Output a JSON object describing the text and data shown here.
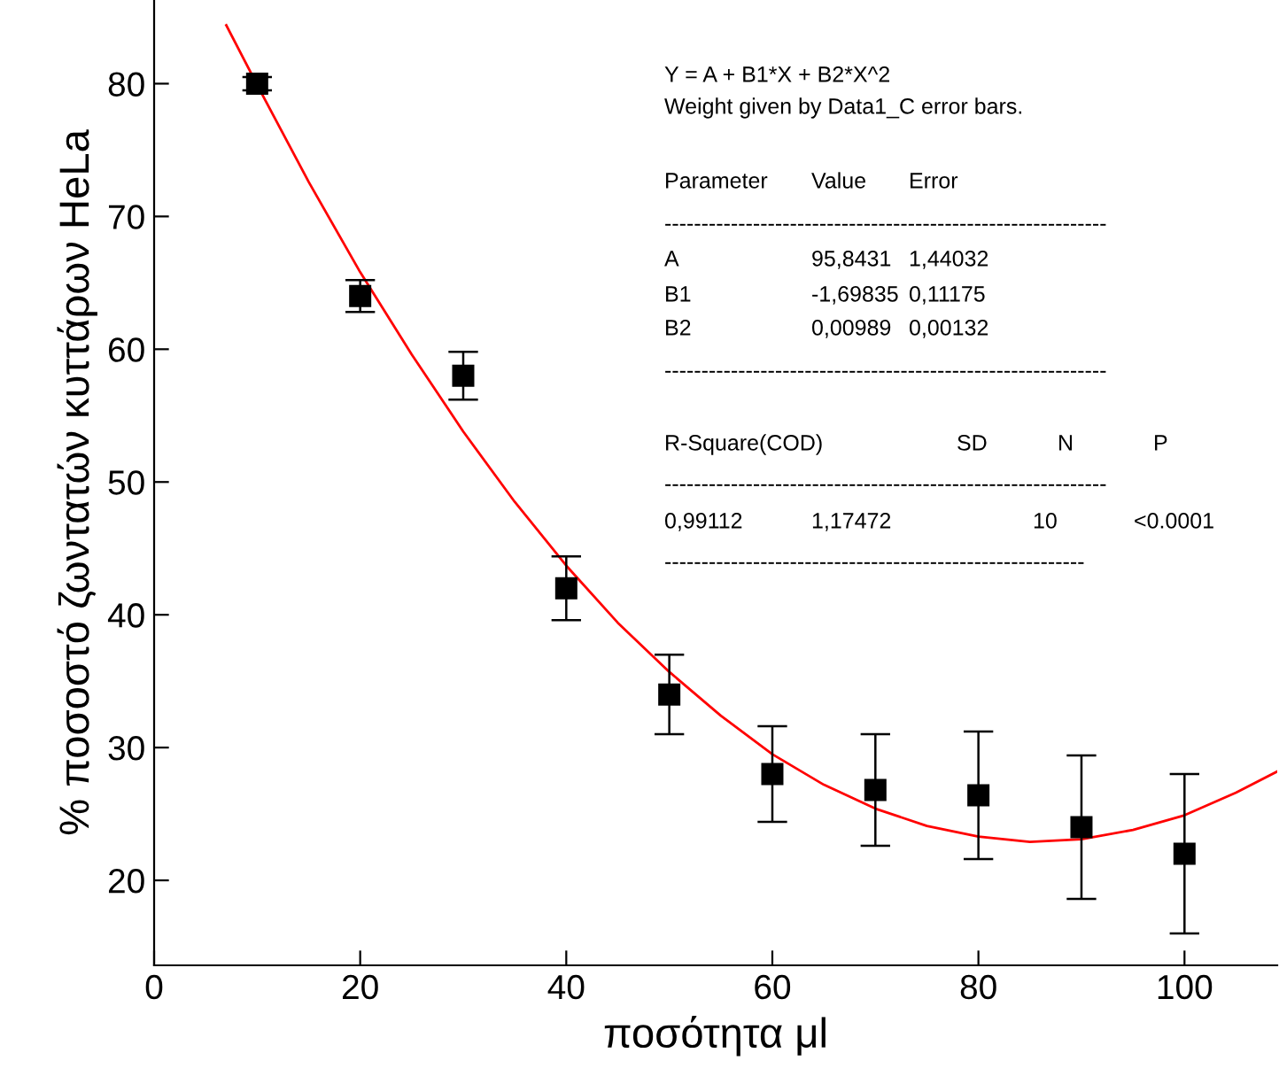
{
  "chart_data": {
    "type": "scatter",
    "xlabel": "ποσότητα μl",
    "ylabel": "% ποσοστό ζωντατών κυττάρων HeLa",
    "xlim": [
      0,
      109
    ],
    "ylim": [
      13.6,
      86.3
    ],
    "xticks": [
      0,
      20,
      40,
      60,
      80,
      100
    ],
    "yticks": [
      20,
      30,
      40,
      50,
      60,
      70,
      80
    ],
    "grid": false,
    "legend": false,
    "series": [
      {
        "color": "#000000",
        "marker": "square",
        "x": [
          10,
          20,
          30,
          40,
          50,
          60,
          70,
          80,
          90,
          100
        ],
        "values": [
          80,
          64,
          58,
          42,
          34,
          28,
          26.8,
          26.4,
          24,
          22
        ],
        "errors": [
          0.5,
          1.2,
          1.8,
          2.4,
          3,
          3.6,
          4.2,
          4.8,
          5.4,
          6
        ]
      },
      {
        "type": "line",
        "color": "#ff0000",
        "marker": "none",
        "line_style": "solid",
        "x": [
          7,
          10,
          15,
          20,
          25,
          30,
          35,
          40,
          45,
          50,
          55,
          60,
          65,
          70,
          75,
          80,
          85,
          90,
          95,
          100,
          105,
          109
        ],
        "values": [
          84.4,
          79.9,
          72.6,
          65.8,
          59.6,
          53.8,
          48.5,
          43.7,
          39.4,
          35.7,
          32.4,
          29.5,
          27.2,
          25.4,
          24.1,
          23.3,
          22.9,
          23.1,
          23.8,
          24.9,
          26.6,
          28.2
        ]
      }
    ],
    "annotations": [
      "Y = A + B1*X + B2*X^2",
      "Weight given by Data1_C error bars.",
      "Parameter",
      "Value",
      "Error",
      "------------------------------------------------------------",
      "A",
      "95,8431",
      "1,44032",
      "B1",
      "-1,69835",
      "0,11175",
      "B2",
      "0,00989",
      "0,00132",
      "------------------------------------------------------------",
      "R-Square(COD)",
      "SD",
      "N",
      "P",
      "------------------------------------------------------------",
      "0,99112",
      "1,17472",
      "10",
      "<0.0001",
      "---------------------------------------------------------"
    ]
  }
}
